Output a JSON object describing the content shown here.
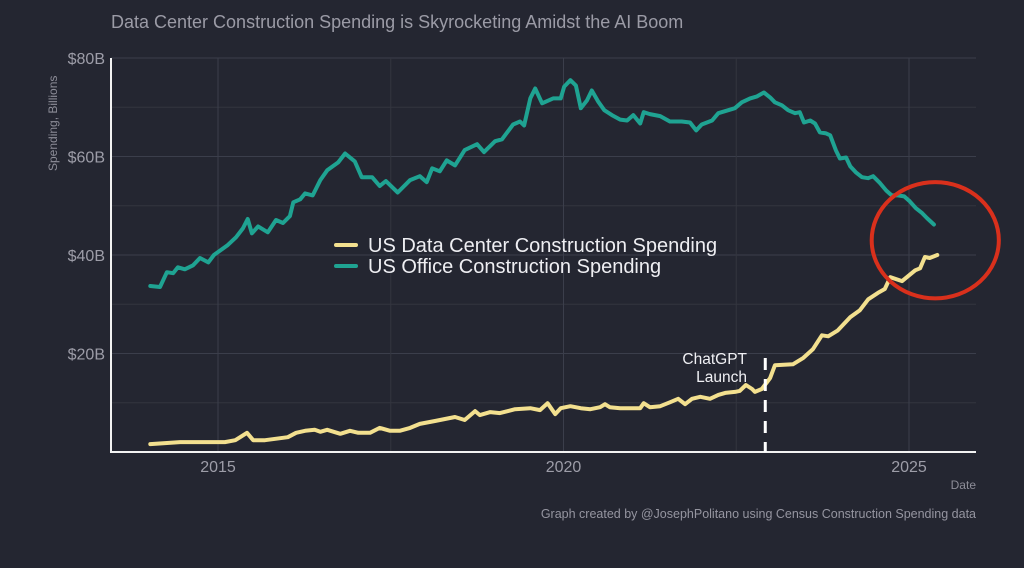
{
  "chart_data": {
    "type": "line",
    "title": "Data Center Construction Spending is Skyrocketing Amidst the AI Boom",
    "xlabel": "Date",
    "ylabel": "Spending, Billions",
    "xlim": [
      2013.45,
      2026.0
    ],
    "ylim": [
      0,
      80
    ],
    "x_ticks": [
      {
        "value": 2015,
        "label": "2015"
      },
      {
        "value": 2020,
        "label": "2020"
      },
      {
        "value": 2025,
        "label": "2025"
      }
    ],
    "y_ticks": [
      {
        "value": 20,
        "label": "$20B"
      },
      {
        "value": 40,
        "label": "$40B"
      },
      {
        "value": 60,
        "label": "$60B"
      },
      {
        "value": 80,
        "label": "$80B"
      }
    ],
    "grid": true,
    "legend": {
      "placement": "center"
    },
    "series": [
      {
        "name": "US Data Center Construction Spending",
        "color": "#f3e08f",
        "x": [
          2014.02,
          2014.45,
          2014.88,
          2015.1,
          2015.25,
          2015.32,
          2015.42,
          2015.51,
          2015.68,
          2015.9,
          2016.01,
          2016.13,
          2016.26,
          2016.4,
          2016.48,
          2016.58,
          2016.77,
          2016.91,
          2017.03,
          2017.2,
          2017.34,
          2017.49,
          2017.63,
          2017.78,
          2017.92,
          2018.14,
          2018.43,
          2018.57,
          2018.72,
          2018.79,
          2018.94,
          2019.08,
          2019.3,
          2019.52,
          2019.66,
          2019.77,
          2019.88,
          2019.96,
          2020.1,
          2020.25,
          2020.39,
          2020.53,
          2020.6,
          2020.67,
          2020.82,
          2021.11,
          2021.16,
          2021.25,
          2021.4,
          2021.54,
          2021.66,
          2021.76,
          2021.86,
          2021.98,
          2022.12,
          2022.24,
          2022.34,
          2022.48,
          2022.55,
          2022.64,
          2022.73,
          2022.77,
          2022.87,
          2022.99,
          2023.06,
          2023.32,
          2023.47,
          2023.61,
          2023.74,
          2023.83,
          2023.97,
          2024.15,
          2024.29,
          2024.41,
          2024.55,
          2024.65,
          2024.73,
          2024.9,
          2025.09,
          2025.16,
          2025.23,
          2025.3,
          2025.41
        ],
        "values": [
          1.6,
          2.0,
          2.0,
          2.0,
          2.4,
          3.0,
          3.9,
          2.4,
          2.4,
          2.8,
          3.0,
          3.9,
          4.3,
          4.5,
          4.1,
          4.5,
          3.7,
          4.3,
          3.9,
          3.9,
          4.9,
          4.3,
          4.3,
          4.9,
          5.7,
          6.3,
          7.1,
          6.5,
          8.3,
          7.5,
          8.1,
          7.9,
          8.7,
          8.9,
          8.5,
          9.9,
          7.7,
          8.9,
          9.3,
          8.9,
          8.7,
          9.1,
          9.7,
          9.1,
          8.9,
          8.9,
          9.9,
          9.1,
          9.3,
          10.1,
          10.8,
          9.7,
          10.8,
          11.2,
          10.8,
          11.6,
          12.0,
          12.2,
          12.4,
          13.6,
          12.8,
          12.2,
          12.8,
          15.0,
          17.6,
          17.8,
          19.1,
          20.9,
          23.7,
          23.5,
          24.7,
          27.4,
          28.8,
          31.0,
          32.3,
          33.1,
          35.5,
          34.7,
          36.9,
          37.3,
          39.6,
          39.4,
          40.0
        ]
      },
      {
        "name": "US Office Construction Spending",
        "color": "#1fa392",
        "x": [
          2014.02,
          2014.16,
          2014.26,
          2014.35,
          2014.42,
          2014.52,
          2014.64,
          2014.74,
          2014.86,
          2014.94,
          2015.14,
          2015.26,
          2015.36,
          2015.43,
          2015.49,
          2015.58,
          2015.72,
          2015.84,
          2015.94,
          2016.04,
          2016.09,
          2016.19,
          2016.26,
          2016.37,
          2016.48,
          2016.58,
          2016.74,
          2016.84,
          2016.98,
          2017.08,
          2017.23,
          2017.34,
          2017.43,
          2017.6,
          2017.78,
          2017.92,
          2018.02,
          2018.1,
          2018.21,
          2018.31,
          2018.43,
          2018.57,
          2018.75,
          2018.85,
          2019.01,
          2019.11,
          2019.27,
          2019.37,
          2019.43,
          2019.52,
          2019.59,
          2019.69,
          2019.85,
          2019.96,
          2020.01,
          2020.1,
          2020.18,
          2020.25,
          2020.34,
          2020.41,
          2020.5,
          2020.59,
          2020.7,
          2020.82,
          2020.92,
          2021.01,
          2021.11,
          2021.16,
          2021.25,
          2021.4,
          2021.54,
          2021.71,
          2021.83,
          2021.92,
          2022.0,
          2022.15,
          2022.24,
          2022.48,
          2022.58,
          2022.7,
          2022.8,
          2022.9,
          2022.99,
          2023.06,
          2023.16,
          2023.25,
          2023.35,
          2023.42,
          2023.48,
          2023.57,
          2023.64,
          2023.71,
          2023.8,
          2023.86,
          2023.94,
          2024.0,
          2024.09,
          2024.15,
          2024.23,
          2024.32,
          2024.41,
          2024.48,
          2024.58,
          2024.67,
          2024.75,
          2024.84,
          2024.93,
          2025.01,
          2025.1,
          2025.19,
          2025.26,
          2025.36
        ],
        "values": [
          33.7,
          33.5,
          36.5,
          36.3,
          37.5,
          37.1,
          37.9,
          39.4,
          38.5,
          40.0,
          42.0,
          43.6,
          45.4,
          47.3,
          44.4,
          45.8,
          44.6,
          47.1,
          46.5,
          47.9,
          50.7,
          51.3,
          52.5,
          52.1,
          55.2,
          57.2,
          58.8,
          60.6,
          59.0,
          55.8,
          55.8,
          54.0,
          55.0,
          52.7,
          55.2,
          56.0,
          54.8,
          57.6,
          57.0,
          59.2,
          58.2,
          61.3,
          62.5,
          60.9,
          63.1,
          63.5,
          66.5,
          67.1,
          66.3,
          71.8,
          73.8,
          70.8,
          71.8,
          71.8,
          74.2,
          75.5,
          74.4,
          69.8,
          71.4,
          73.4,
          71.2,
          69.4,
          68.4,
          67.5,
          67.3,
          68.4,
          66.7,
          69.0,
          68.6,
          68.2,
          67.1,
          67.1,
          66.9,
          65.3,
          66.5,
          67.3,
          68.8,
          69.8,
          71.0,
          71.8,
          72.2,
          73.0,
          72.0,
          71.0,
          70.4,
          69.4,
          68.8,
          69.0,
          66.9,
          67.3,
          66.7,
          64.9,
          64.7,
          64.3,
          61.3,
          59.6,
          59.8,
          58.0,
          56.8,
          55.8,
          55.6,
          56.0,
          54.6,
          53.1,
          52.1,
          52.1,
          51.9,
          50.9,
          49.5,
          48.5,
          47.5,
          46.2
        ]
      }
    ],
    "annotations": [
      {
        "type": "vline",
        "x": 2022.92,
        "label_lines": [
          "ChatGPT",
          "Launch"
        ],
        "style": "dashed",
        "color": "#ffffff"
      },
      {
        "type": "ellipse",
        "cx": 2025.38,
        "cy": 43,
        "rx_years": 0.92,
        "ry_value": 11.8,
        "color": "#d9301c"
      }
    ],
    "caption": "Graph created by @JosephPolitano using Census Construction Spending data"
  }
}
